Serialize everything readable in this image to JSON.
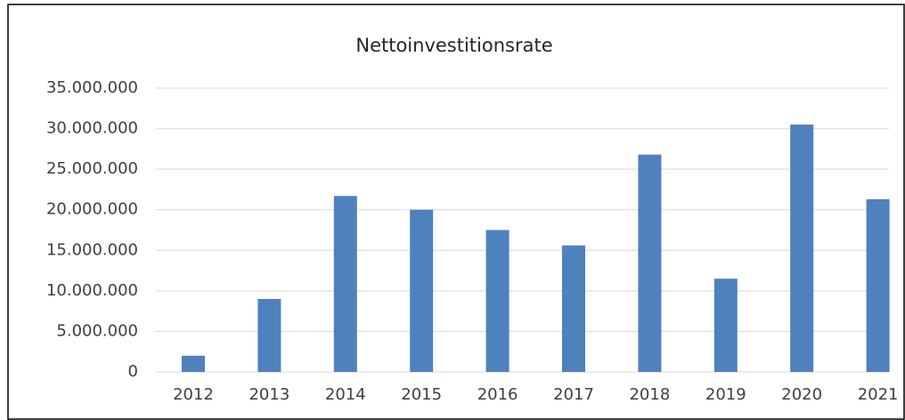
{
  "chart_data": {
    "type": "bar",
    "title": "Nettoinvestitionsrate",
    "categories": [
      "2012",
      "2013",
      "2014",
      "2015",
      "2016",
      "2017",
      "2018",
      "2019",
      "2020",
      "2021"
    ],
    "values": [
      2000000,
      9000000,
      21700000,
      20000000,
      17500000,
      15600000,
      26800000,
      11500000,
      30500000,
      21300000
    ],
    "color": "#4f81bd",
    "ylim": [
      0,
      35000000
    ],
    "yticks": [
      0,
      {
        "value": 5000000,
        "label": "5.000.000"
      },
      {
        "value": 10000000,
        "label": "10.000.000"
      },
      {
        "value": 15000000,
        "label": "15.000.000"
      },
      {
        "value": 20000000,
        "label": "20.000.000"
      },
      {
        "value": 25000000,
        "label": "25.000.000"
      },
      {
        "value": 30000000,
        "label": "30.000.000"
      },
      {
        "value": 35000000,
        "label": "35.000.000"
      }
    ],
    "grid": true
  }
}
